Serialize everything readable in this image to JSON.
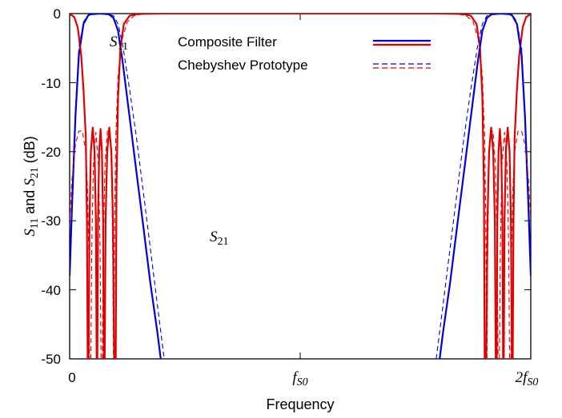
{
  "chart_data": {
    "type": "line",
    "xlabel": "Frequency",
    "ylabel": {
      "s11_base": "S",
      "s11_sub": "11",
      "and": " and ",
      "s21_base": "S",
      "s21_sub": "21",
      "unit": " (dB)"
    },
    "ylim": [
      -50,
      0
    ],
    "xlim": [
      0,
      2
    ],
    "y_ticks": [
      "0",
      "-10",
      "-20",
      "-30",
      "-40",
      "-50"
    ],
    "x_ticks": [
      {
        "value": 0,
        "base": "0",
        "sub": ""
      },
      {
        "value": 1,
        "base": "f",
        "sub": "S0"
      },
      {
        "value": 2,
        "base": "2f",
        "sub": "S0"
      }
    ],
    "annotations": [
      {
        "id": "s11",
        "base": "S",
        "sub": "11"
      },
      {
        "id": "s21",
        "base": "S",
        "sub": "21"
      }
    ],
    "legend": [
      {
        "label": "Composite Filter",
        "style": "solid"
      },
      {
        "label": "Chebyshev Prototype",
        "style": "dashed"
      }
    ],
    "legend_position": "top-center",
    "colors": {
      "s21": "#0000d8",
      "s11": "#e00000"
    },
    "series": [
      {
        "label_ref": "Composite Filter",
        "param": "S21",
        "band": "lower",
        "style": "solid",
        "points": [
          [
            0,
            -38
          ],
          [
            0.01,
            -28
          ],
          [
            0.025,
            -15
          ],
          [
            0.04,
            -6
          ],
          [
            0.06,
            -1.5
          ],
          [
            0.08,
            -0.3
          ],
          [
            0.09,
            -0.1
          ],
          [
            0.13,
            0
          ],
          [
            0.17,
            -0.1
          ],
          [
            0.19,
            -0.6
          ],
          [
            0.21,
            -2.5
          ],
          [
            0.23,
            -7
          ],
          [
            0.26,
            -15
          ],
          [
            0.29,
            -23
          ],
          [
            0.32,
            -31
          ],
          [
            0.35,
            -39
          ],
          [
            0.38,
            -46
          ],
          [
            0.395,
            -50
          ]
        ]
      },
      {
        "label_ref": "Composite Filter",
        "param": "S11",
        "band": "lower",
        "style": "solid",
        "points": [
          [
            0,
            -0.05
          ],
          [
            0.02,
            -0.5
          ],
          [
            0.035,
            -2
          ],
          [
            0.05,
            -6
          ],
          [
            0.06,
            -11
          ],
          [
            0.07,
            -18
          ],
          [
            0.075,
            -30
          ],
          [
            0.078,
            -50
          ]
        ]
      },
      {
        "label_ref": "Composite Filter",
        "param": "S11",
        "band": "lower",
        "style": "solid",
        "points": [
          [
            0.082,
            -50
          ],
          [
            0.086,
            -30
          ],
          [
            0.092,
            -20
          ],
          [
            0.1,
            -16.5
          ],
          [
            0.108,
            -20
          ],
          [
            0.114,
            -30
          ],
          [
            0.117,
            -50
          ]
        ]
      },
      {
        "label_ref": "Composite Filter",
        "param": "S11",
        "band": "lower",
        "style": "solid",
        "points": [
          [
            0.12,
            -50
          ],
          [
            0.123,
            -30
          ],
          [
            0.128,
            -20
          ],
          [
            0.134,
            -16.7
          ],
          [
            0.14,
            -20
          ],
          [
            0.145,
            -30
          ],
          [
            0.148,
            -50
          ]
        ]
      },
      {
        "label_ref": "Composite Filter",
        "param": "S11",
        "band": "lower",
        "style": "solid",
        "points": [
          [
            0.152,
            -50
          ],
          [
            0.156,
            -30
          ],
          [
            0.163,
            -20
          ],
          [
            0.172,
            -16.5
          ],
          [
            0.181,
            -20
          ],
          [
            0.188,
            -30
          ],
          [
            0.193,
            -50
          ]
        ]
      },
      {
        "label_ref": "Composite Filter",
        "param": "S11",
        "band": "lower",
        "style": "solid",
        "points": [
          [
            0.2,
            -50
          ],
          [
            0.203,
            -25
          ],
          [
            0.21,
            -12
          ],
          [
            0.22,
            -5
          ],
          [
            0.235,
            -1.5
          ],
          [
            0.26,
            -0.3
          ],
          [
            0.3,
            -0.05
          ],
          [
            0.4,
            0
          ],
          [
            1.6,
            0
          ],
          [
            1.7,
            -0.05
          ],
          [
            1.74,
            -0.3
          ],
          [
            1.765,
            -1.5
          ],
          [
            1.78,
            -5
          ],
          [
            1.79,
            -12
          ],
          [
            1.797,
            -25
          ],
          [
            1.8,
            -50
          ]
        ]
      },
      {
        "label_ref": "Composite Filter",
        "param": "S11",
        "band": "upper",
        "style": "solid",
        "points": [
          [
            1.807,
            -50
          ],
          [
            1.812,
            -30
          ],
          [
            1.819,
            -20
          ],
          [
            1.828,
            -16.5
          ],
          [
            1.837,
            -20
          ],
          [
            1.844,
            -30
          ],
          [
            1.848,
            -50
          ]
        ]
      },
      {
        "label_ref": "Composite Filter",
        "param": "S11",
        "band": "upper",
        "style": "solid",
        "points": [
          [
            1.852,
            -50
          ],
          [
            1.855,
            -30
          ],
          [
            1.86,
            -20
          ],
          [
            1.866,
            -16.7
          ],
          [
            1.872,
            -20
          ],
          [
            1.877,
            -30
          ],
          [
            1.88,
            -50
          ]
        ]
      },
      {
        "label_ref": "Composite Filter",
        "param": "S11",
        "band": "upper",
        "style": "solid",
        "points": [
          [
            1.883,
            -50
          ],
          [
            1.886,
            -30
          ],
          [
            1.892,
            -20
          ],
          [
            1.9,
            -16.5
          ],
          [
            1.908,
            -20
          ],
          [
            1.914,
            -30
          ],
          [
            1.918,
            -50
          ]
        ]
      },
      {
        "label_ref": "Composite Filter",
        "param": "S11",
        "band": "upper",
        "style": "solid",
        "points": [
          [
            1.922,
            -50
          ],
          [
            1.925,
            -30
          ],
          [
            1.93,
            -18
          ],
          [
            1.94,
            -11
          ],
          [
            1.95,
            -6
          ],
          [
            1.965,
            -2
          ],
          [
            1.98,
            -0.5
          ],
          [
            2,
            -0.05
          ]
        ]
      },
      {
        "label_ref": "Composite Filter",
        "param": "S21",
        "band": "upper",
        "style": "solid",
        "points": [
          [
            1.605,
            -50
          ],
          [
            1.62,
            -46
          ],
          [
            1.65,
            -39
          ],
          [
            1.68,
            -31
          ],
          [
            1.71,
            -23
          ],
          [
            1.74,
            -15
          ],
          [
            1.77,
            -7
          ],
          [
            1.79,
            -2.5
          ],
          [
            1.81,
            -0.6
          ],
          [
            1.83,
            -0.1
          ],
          [
            1.87,
            0
          ],
          [
            1.91,
            -0.1
          ],
          [
            1.92,
            -0.3
          ],
          [
            1.94,
            -1.5
          ],
          [
            1.96,
            -6
          ],
          [
            1.975,
            -15
          ],
          [
            1.99,
            -28
          ],
          [
            2,
            -38
          ]
        ]
      },
      {
        "label_ref": "Chebyshev Prototype",
        "param": "S21",
        "band": "lower",
        "style": "dashed",
        "points": [
          [
            0,
            -36
          ],
          [
            0.01,
            -27
          ],
          [
            0.025,
            -14
          ],
          [
            0.04,
            -5
          ],
          [
            0.06,
            -1.2
          ],
          [
            0.08,
            -0.2
          ],
          [
            0.1,
            0
          ],
          [
            0.16,
            0
          ],
          [
            0.19,
            -0.3
          ],
          [
            0.21,
            -1.5
          ],
          [
            0.23,
            -4.5
          ],
          [
            0.26,
            -11
          ],
          [
            0.29,
            -18
          ],
          [
            0.32,
            -26
          ],
          [
            0.35,
            -34
          ],
          [
            0.38,
            -42
          ],
          [
            0.41,
            -50
          ]
        ]
      },
      {
        "label_ref": "Chebyshev Prototype",
        "param": "S11",
        "band": "lower",
        "style": "dashed",
        "points": [
          [
            0,
            -30
          ],
          [
            0.01,
            -24
          ],
          [
            0.025,
            -19
          ],
          [
            0.04,
            -17
          ],
          [
            0.055,
            -17
          ],
          [
            0.07,
            -20
          ],
          [
            0.078,
            -26
          ],
          [
            0.083,
            -35
          ],
          [
            0.086,
            -50
          ]
        ]
      },
      {
        "label_ref": "Chebyshev Prototype",
        "param": "S11",
        "band": "lower",
        "style": "dashed",
        "points": [
          [
            0.092,
            -50
          ],
          [
            0.096,
            -34
          ],
          [
            0.103,
            -22
          ],
          [
            0.114,
            -17.2
          ],
          [
            0.125,
            -22
          ],
          [
            0.132,
            -34
          ],
          [
            0.136,
            -50
          ]
        ]
      },
      {
        "label_ref": "Chebyshev Prototype",
        "param": "S11",
        "band": "lower",
        "style": "dashed",
        "points": [
          [
            0.142,
            -50
          ],
          [
            0.146,
            -34
          ],
          [
            0.153,
            -22
          ],
          [
            0.164,
            -17
          ],
          [
            0.176,
            -17.5
          ],
          [
            0.183,
            -24
          ],
          [
            0.187,
            -36
          ],
          [
            0.19,
            -50
          ]
        ]
      },
      {
        "label_ref": "Chebyshev Prototype",
        "param": "S11",
        "band": "lower",
        "style": "dashed",
        "points": [
          [
            0.192,
            -50
          ],
          [
            0.195,
            -30
          ],
          [
            0.2,
            -18
          ],
          [
            0.21,
            -9
          ],
          [
            0.225,
            -4
          ],
          [
            0.25,
            -1.2
          ],
          [
            0.28,
            -0.3
          ],
          [
            0.32,
            -0.05
          ],
          [
            0.4,
            0
          ],
          [
            1.6,
            0
          ],
          [
            1.68,
            -0.05
          ],
          [
            1.72,
            -0.3
          ],
          [
            1.75,
            -1.2
          ],
          [
            1.775,
            -4
          ],
          [
            1.79,
            -9
          ],
          [
            1.8,
            -18
          ],
          [
            1.805,
            -30
          ],
          [
            1.808,
            -50
          ]
        ]
      },
      {
        "label_ref": "Chebyshev Prototype",
        "param": "S11",
        "band": "upper",
        "style": "dashed",
        "points": [
          [
            1.81,
            -50
          ],
          [
            1.813,
            -36
          ],
          [
            1.817,
            -24
          ],
          [
            1.824,
            -17.5
          ],
          [
            1.836,
            -17
          ],
          [
            1.847,
            -22
          ],
          [
            1.854,
            -34
          ],
          [
            1.858,
            -50
          ]
        ]
      },
      {
        "label_ref": "Chebyshev Prototype",
        "param": "S11",
        "band": "upper",
        "style": "dashed",
        "points": [
          [
            1.864,
            -50
          ],
          [
            1.868,
            -34
          ],
          [
            1.875,
            -22
          ],
          [
            1.886,
            -17.2
          ],
          [
            1.897,
            -22
          ],
          [
            1.904,
            -34
          ],
          [
            1.908,
            -50
          ]
        ]
      },
      {
        "label_ref": "Chebyshev Prototype",
        "param": "S11",
        "band": "upper",
        "style": "dashed",
        "points": [
          [
            1.914,
            -50
          ],
          [
            1.917,
            -35
          ],
          [
            1.922,
            -26
          ],
          [
            1.93,
            -20
          ],
          [
            1.945,
            -17
          ],
          [
            1.96,
            -17
          ],
          [
            1.975,
            -19
          ],
          [
            1.99,
            -24
          ],
          [
            2,
            -30
          ]
        ]
      },
      {
        "label_ref": "Chebyshev Prototype",
        "param": "S21",
        "band": "upper",
        "style": "dashed",
        "points": [
          [
            1.59,
            -50
          ],
          [
            1.62,
            -42
          ],
          [
            1.65,
            -34
          ],
          [
            1.68,
            -26
          ],
          [
            1.71,
            -18
          ],
          [
            1.74,
            -11
          ],
          [
            1.77,
            -4.5
          ],
          [
            1.79,
            -1.5
          ],
          [
            1.81,
            -0.3
          ],
          [
            1.84,
            0
          ],
          [
            1.9,
            0
          ],
          [
            1.92,
            -0.2
          ],
          [
            1.94,
            -1.2
          ],
          [
            1.96,
            -5
          ],
          [
            1.975,
            -14
          ],
          [
            1.99,
            -27
          ],
          [
            2,
            -36
          ]
        ]
      }
    ]
  }
}
